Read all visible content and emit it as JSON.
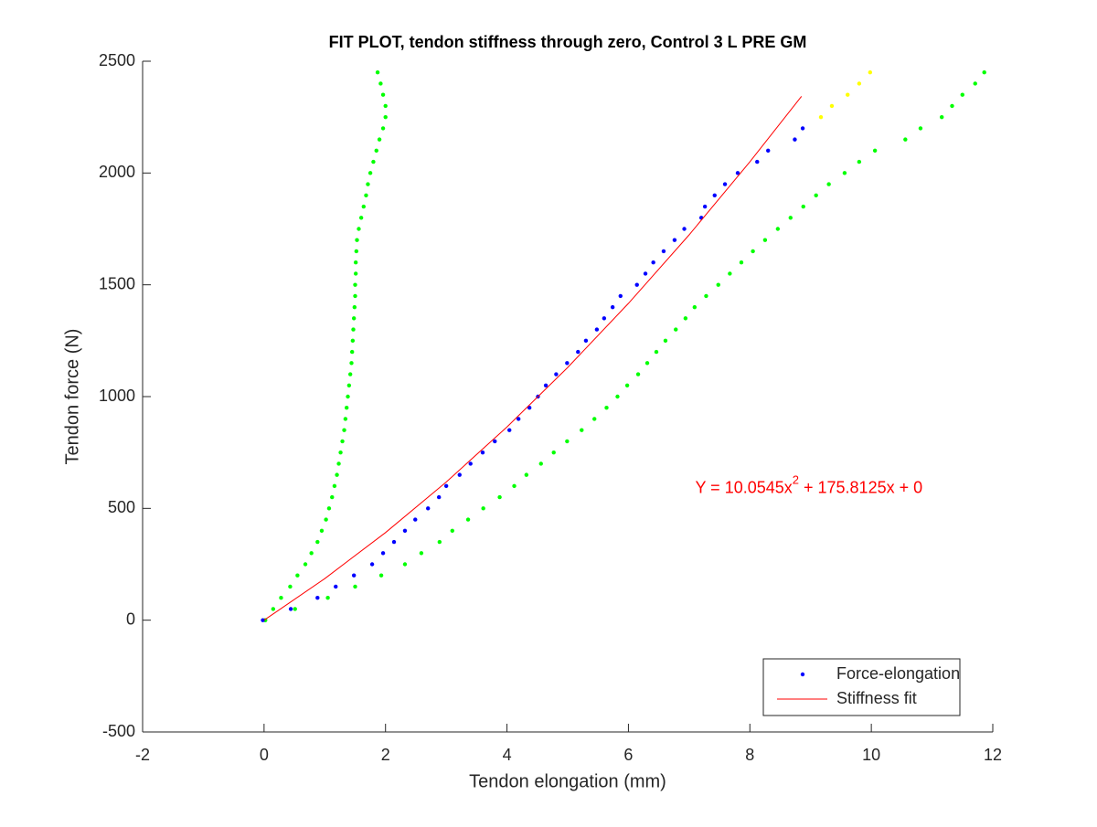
{
  "chart_data": {
    "type": "scatter",
    "title": "FIT PLOT, tendon stiffness through zero, Control 3 L PRE GM",
    "xlabel": "Tendon elongation (mm)",
    "ylabel": "Tendon force (N)",
    "xlim": [
      -2,
      12
    ],
    "xticks": [
      -2,
      0,
      2,
      4,
      6,
      8,
      10,
      12
    ],
    "ylim": [
      -500,
      2500
    ],
    "yticks": [
      -500,
      0,
      500,
      1000,
      1500,
      2000,
      2500
    ],
    "legend": "lower right",
    "annotation": {
      "parts": [
        "Y = 10.0545x",
        "2",
        " + 175.8125x + 0"
      ],
      "x": 7.1,
      "y": 590,
      "color": "#ff0000"
    },
    "series": [
      {
        "mode": "markers",
        "color": "#00ff00",
        "x": [
          0.02,
          0.15,
          0.28,
          0.43,
          0.55,
          0.68,
          0.78,
          0.88,
          0.95,
          1.02,
          1.07,
          1.12,
          1.16,
          1.2,
          1.23,
          1.26,
          1.29,
          1.32,
          1.34,
          1.36,
          1.38,
          1.4,
          1.42,
          1.44,
          1.45,
          1.46,
          1.47,
          1.48,
          1.49,
          1.5,
          1.5,
          1.51,
          1.51,
          1.52,
          1.53,
          1.56,
          1.6,
          1.64,
          1.68,
          1.71,
          1.75,
          1.8,
          1.85,
          1.9,
          1.96,
          2.0,
          2.0,
          1.96,
          1.92,
          1.87
        ],
        "values": [
          0,
          50,
          100,
          150,
          200,
          250,
          300,
          350,
          400,
          450,
          500,
          550,
          600,
          650,
          700,
          750,
          800,
          850,
          900,
          950,
          1000,
          1050,
          1100,
          1150,
          1200,
          1250,
          1300,
          1350,
          1400,
          1450,
          1500,
          1550,
          1600,
          1650,
          1700,
          1750,
          1800,
          1850,
          1900,
          1950,
          2000,
          2050,
          2100,
          2150,
          2200,
          2250,
          2300,
          2350,
          2400,
          2450
        ]
      },
      {
        "mode": "markers",
        "color": "#00ff00",
        "x": [
          0.02,
          0.51,
          1.05,
          1.5,
          1.93,
          2.32,
          2.59,
          2.89,
          3.1,
          3.36,
          3.61,
          3.88,
          4.12,
          4.32,
          4.56,
          4.77,
          4.99,
          5.23,
          5.44,
          5.64,
          5.82,
          5.98,
          6.16,
          6.31,
          6.46,
          6.61,
          6.78,
          6.94,
          7.09,
          7.28,
          7.48,
          7.67,
          7.86,
          8.05,
          8.25,
          8.46,
          8.67,
          8.88,
          9.09,
          9.3,
          9.56,
          9.8,
          10.06,
          10.56,
          10.81,
          11.16,
          11.33,
          11.5,
          11.71,
          11.86
        ],
        "values": [
          0,
          50,
          100,
          150,
          200,
          250,
          300,
          350,
          400,
          450,
          500,
          550,
          600,
          650,
          700,
          750,
          800,
          850,
          900,
          950,
          1000,
          1050,
          1100,
          1150,
          1200,
          1250,
          1300,
          1350,
          1400,
          1450,
          1500,
          1550,
          1600,
          1650,
          1700,
          1750,
          1800,
          1850,
          1900,
          1950,
          2000,
          2050,
          2100,
          2150,
          2200,
          2250,
          2300,
          2350,
          2400,
          2450
        ]
      },
      {
        "mode": "markers",
        "color": "#ffff00",
        "x": [
          9.17,
          9.35,
          9.61,
          9.8,
          9.98
        ],
        "values": [
          2250,
          2300,
          2350,
          2400,
          2450
        ]
      },
      {
        "name": "Force-elongation",
        "mode": "markers",
        "color": "#0000ff",
        "x": [
          -0.02,
          0.44,
          0.88,
          1.18,
          1.48,
          1.78,
          1.96,
          2.14,
          2.32,
          2.49,
          2.7,
          2.88,
          3.0,
          3.22,
          3.4,
          3.6,
          3.8,
          4.04,
          4.19,
          4.37,
          4.51,
          4.64,
          4.81,
          4.99,
          5.17,
          5.3,
          5.48,
          5.6,
          5.74,
          5.87,
          6.14,
          6.28,
          6.41,
          6.58,
          6.76,
          6.92,
          7.2,
          7.26,
          7.42,
          7.59,
          7.8,
          8.12,
          8.3,
          8.74,
          8.87
        ],
        "values": [
          0,
          50,
          100,
          150,
          200,
          250,
          300,
          350,
          400,
          450,
          500,
          550,
          600,
          650,
          700,
          750,
          800,
          850,
          900,
          950,
          1000,
          1050,
          1100,
          1150,
          1200,
          1250,
          1300,
          1350,
          1400,
          1450,
          1500,
          1550,
          1600,
          1650,
          1700,
          1750,
          1800,
          1850,
          1900,
          1950,
          2000,
          2050,
          2100,
          2150,
          2200
        ]
      },
      {
        "name": "Stiffness fit",
        "mode": "line",
        "color": "#ff0000",
        "x": [
          0,
          1,
          2,
          3,
          4,
          5,
          6,
          7,
          8,
          8.85
        ],
        "values": [
          0,
          185.9,
          391.8,
          617.9,
          864.1,
          1130.4,
          1416.8,
          1723.4,
          2050.0,
          2343
        ]
      }
    ]
  }
}
